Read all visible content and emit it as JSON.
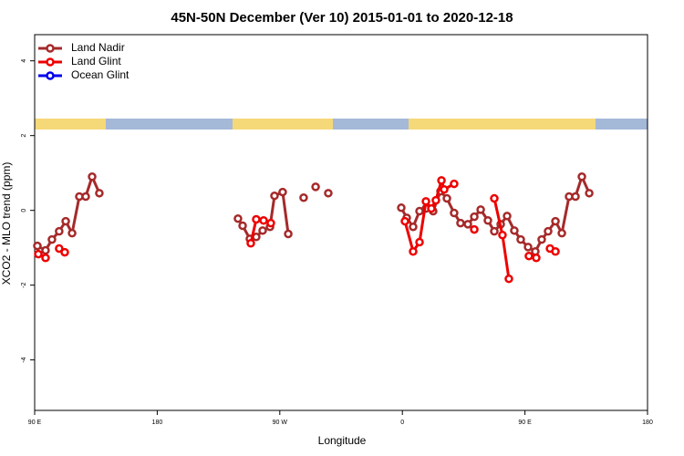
{
  "chart_data": {
    "type": "line",
    "title": "45N-50N December (Ver 10)   2015-01-01 to 2020-12-18",
    "x_label": "Longitude",
    "y_label": "XCO2 - MLO trend (ppm)",
    "xlim": [
      90,
      540
    ],
    "ylim": [
      -5.35,
      4.7
    ],
    "xticks": [
      {
        "value": 90,
        "label": "90 E"
      },
      {
        "value": 180,
        "label": "180"
      },
      {
        "value": 270,
        "label": "90 W"
      },
      {
        "value": 360,
        "label": "0"
      },
      {
        "value": 450,
        "label": "90 E"
      },
      {
        "value": 540,
        "label": "180"
      }
    ],
    "yticks": [
      -4,
      -2,
      0,
      2,
      4
    ],
    "legend": "top-left",
    "series": [
      {
        "name": "Land Nadir",
        "color": "#a52a2a",
        "x": [
          92,
          98,
          102.7,
          108,
          112.8,
          117.5,
          122.8,
          127.5,
          132.2,
          137.5,
          null,
          239.3,
          242.7,
          248,
          252.7,
          257.4,
          262.8,
          266.1,
          272.1,
          276.2,
          null,
          287.5,
          null,
          296.3,
          null,
          305.6,
          null,
          359.2,
          363.2,
          367.9,
          372.6,
          377.3,
          382.6,
          388,
          392.7,
          398,
          402.7,
          408.1,
          412.8,
          417.5,
          422.8,
          427.5,
          432.2,
          436.9,
          442.2,
          446.9,
          452.3,
          457.6,
          462.3,
          467,
          472.4,
          477.1,
          482.4,
          487.1,
          491.8,
          497.2
        ],
        "values": [
          -0.95,
          -1.07,
          -0.78,
          -0.56,
          -0.29,
          -0.61,
          0.37,
          0.37,
          0.9,
          0.46,
          null,
          -0.22,
          -0.41,
          -0.76,
          -0.71,
          -0.54,
          -0.44,
          0.39,
          0.49,
          -0.63,
          null,
          0.34,
          null,
          0.63,
          null,
          0.46,
          null,
          0.07,
          -0.2,
          -0.44,
          -0.02,
          0.05,
          -0.02,
          0.51,
          0.32,
          -0.07,
          -0.34,
          -0.37,
          -0.17,
          0.02,
          -0.27,
          -0.56,
          -0.37,
          -0.15,
          -0.54,
          -0.78,
          -0.98,
          -1.1,
          -0.78,
          -0.56,
          -0.29,
          -0.61,
          0.37,
          0.37,
          0.9,
          0.46
        ]
      },
      {
        "name": "Land Glint",
        "color": "#ee0000",
        "x": [
          92.7,
          98,
          null,
          108,
          112.1,
          null,
          248.7,
          252.7,
          258.1,
          263.4,
          null,
          361.9,
          367.9,
          372.6,
          377.3,
          381.3,
          384.6,
          388.7,
          390.7,
          398,
          null,
          412.8,
          null,
          427.5,
          433.5,
          438.2,
          null,
          452.9,
          458.3,
          null,
          468.4,
          472.4
        ],
        "values": [
          -1.17,
          -1.27,
          null,
          -1.02,
          -1.12,
          null,
          -0.88,
          -0.24,
          -0.27,
          -0.34,
          null,
          -0.29,
          -1.1,
          -0.85,
          0.24,
          0.05,
          0.27,
          0.8,
          0.56,
          0.71,
          null,
          -0.51,
          null,
          0.32,
          -0.66,
          -1.83,
          null,
          -1.22,
          -1.27,
          null,
          -1.02,
          -1.1
        ]
      },
      {
        "name": "Ocean Glint",
        "color": "#0000ee",
        "x": [],
        "values": []
      }
    ]
  }
}
